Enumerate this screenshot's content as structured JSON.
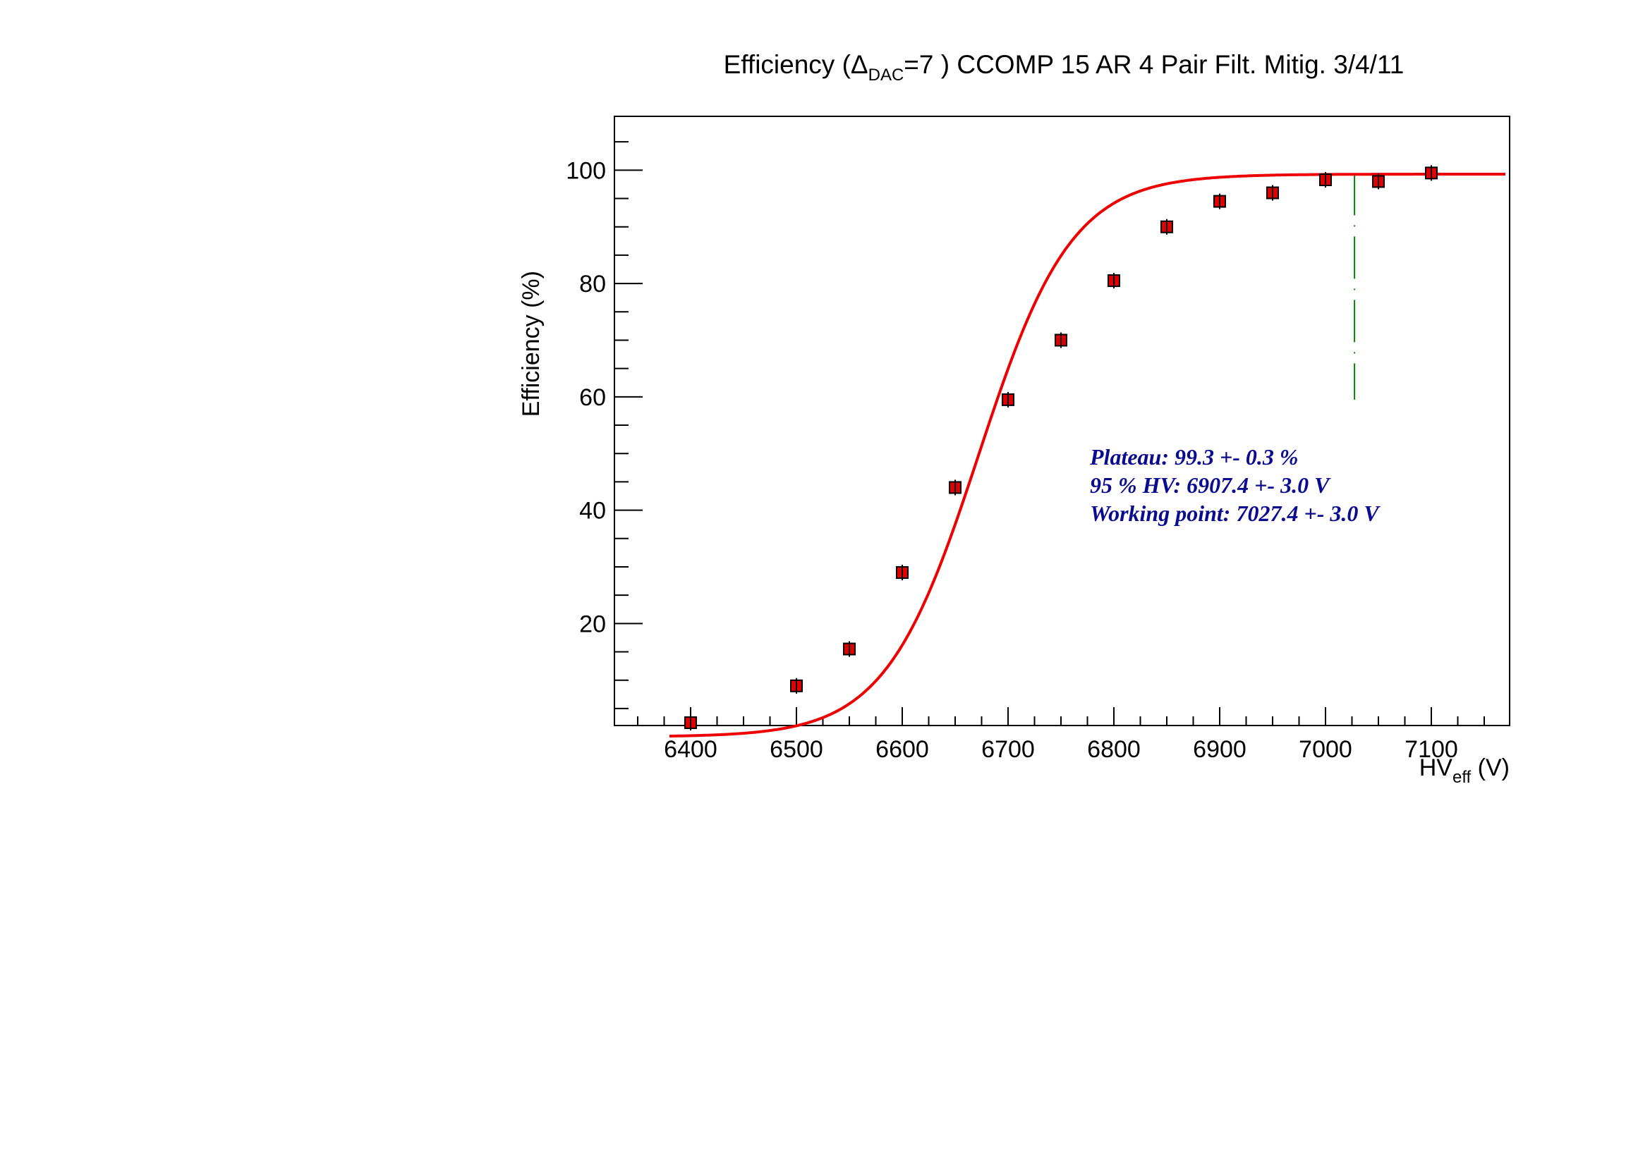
{
  "chart_data": {
    "type": "scatter",
    "title": {
      "prefix": "Efficiency (Δ",
      "sub": "DAC",
      "suffix": "=7 ) CCOMP 15 AR 4 Pair Filt. Mitig. 3/4/11"
    },
    "xlabel": {
      "main": "HV",
      "sub": "eff",
      "suffix": " (V)"
    },
    "ylabel": "Efficiency (%)",
    "xlim": [
      6328,
      7174
    ],
    "ylim": [
      2,
      109.5
    ],
    "x_ticks": [
      6400,
      6500,
      6600,
      6700,
      6800,
      6900,
      7000,
      7100
    ],
    "y_ticks": [
      20,
      40,
      60,
      80,
      100
    ],
    "grid": false,
    "series": [
      {
        "marker": "square",
        "x": [
          6400,
          6500,
          6550,
          6600,
          6650,
          6700,
          6750,
          6800,
          6850,
          6900,
          6950,
          7000,
          7050,
          7100
        ],
        "y": [
          2.5,
          9,
          15.5,
          29,
          44,
          59.5,
          70,
          80.5,
          90,
          94.5,
          96,
          98.3,
          98,
          99.5
        ],
        "color": "#e00000"
      }
    ],
    "fit": {
      "type": "sigmoid",
      "plateau": 99.3,
      "midpoint": 6672,
      "slope": 44,
      "x_range": [
        6380,
        7170
      ],
      "color": "#ee0000"
    },
    "working_point_line": {
      "x": 7027.4,
      "y_range": [
        59.5,
        99.5
      ],
      "color": "#008800"
    },
    "annotations": [
      "Plateau: 99.3 +- 0.3 %",
      "95 % HV: 6907.4 +- 3.0 V",
      "Working point: 7027.4 +- 3.0 V"
    ],
    "annotation_color": "#0b0b8f"
  }
}
